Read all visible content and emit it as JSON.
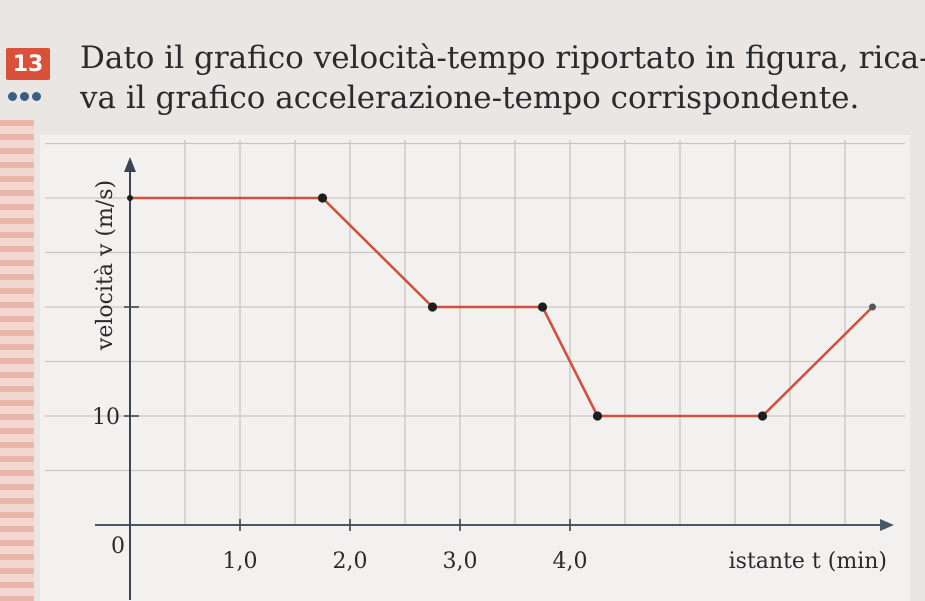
{
  "exercise": {
    "number": "13",
    "difficulty_dots": 3,
    "text_line1": "Dato il grafico velocità-tempo riportato in figura, rica-",
    "text_line2": "va il grafico accelerazione-tempo corrispondente."
  },
  "colors": {
    "badge": "#d9513b",
    "dots": "#3a5d87",
    "line": "#d1513f",
    "grid": "#c9c5c2"
  },
  "chart_data": {
    "type": "line",
    "title": "",
    "xlabel": "istante t (min)",
    "ylabel": "velocità v (m/s)",
    "origin_label": "0",
    "x_tick_labels": [
      {
        "value": 1.0,
        "label": "1,0"
      },
      {
        "value": 2.0,
        "label": "2,0"
      },
      {
        "value": 3.0,
        "label": "3,0"
      },
      {
        "value": 4.0,
        "label": "4,0"
      }
    ],
    "y_tick_labels": [
      {
        "value": 10,
        "label": "10"
      }
    ],
    "y_ticks": [
      10,
      20
    ],
    "xlim": [
      0,
      6.8
    ],
    "ylim": [
      0,
      37
    ],
    "grid": true,
    "series": [
      {
        "x": [
          0,
          1.75,
          2.75,
          3.75,
          4.25,
          5.75,
          6.75
        ],
        "y": [
          30,
          30,
          20,
          20,
          10,
          10,
          20
        ]
      }
    ]
  }
}
